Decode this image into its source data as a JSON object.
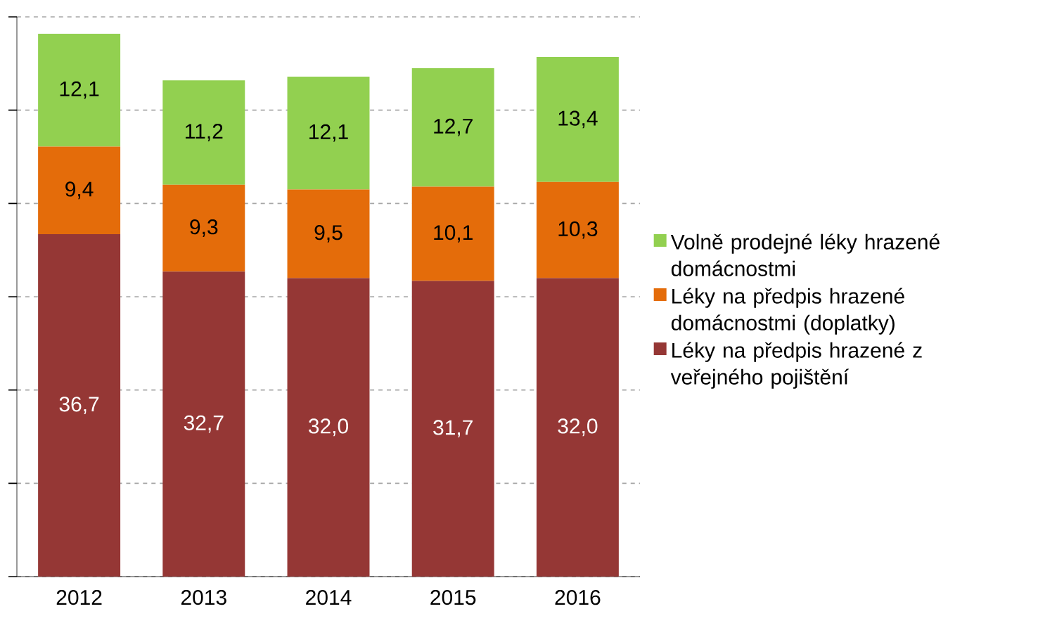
{
  "chart_data": {
    "type": "bar",
    "stacked": true,
    "categories": [
      "2012",
      "2013",
      "2014",
      "2015",
      "2016"
    ],
    "series": [
      {
        "name": "Léky na předpis hrazené z veřejného pojištění",
        "color": "#953735",
        "values": [
          36.7,
          32.7,
          32.0,
          31.7,
          32.0
        ],
        "value_labels": [
          "36,7",
          "32,7",
          "32,0",
          "31,7",
          "32,0"
        ]
      },
      {
        "name": "Léky na předpis hrazené domácnostmi (doplatky)",
        "color": "#e46c0a",
        "values": [
          9.4,
          9.3,
          9.5,
          10.1,
          10.3
        ],
        "value_labels": [
          "9,4",
          "9,3",
          "9,5",
          "10,1",
          "10,3"
        ]
      },
      {
        "name": "Volně prodejné léky hrazené domácnostmi",
        "color": "#92d050",
        "values": [
          12.1,
          11.2,
          12.1,
          12.7,
          13.4
        ],
        "value_labels": [
          "12,1",
          "11,2",
          "12,1",
          "12,7",
          "13,4"
        ]
      }
    ],
    "ylim": [
      0,
      60
    ],
    "yticks": [
      {
        "value": 0,
        "label": null
      },
      {
        "value": 10,
        "label": null
      },
      {
        "value": 20,
        "label": null
      },
      {
        "value": 30,
        "label": null
      },
      {
        "value": 40,
        "label": null
      },
      {
        "value": 50,
        "label": null
      },
      {
        "value": 60,
        "label": null
      }
    ],
    "tick_labels": "x",
    "grid": "y",
    "legend": "right"
  }
}
